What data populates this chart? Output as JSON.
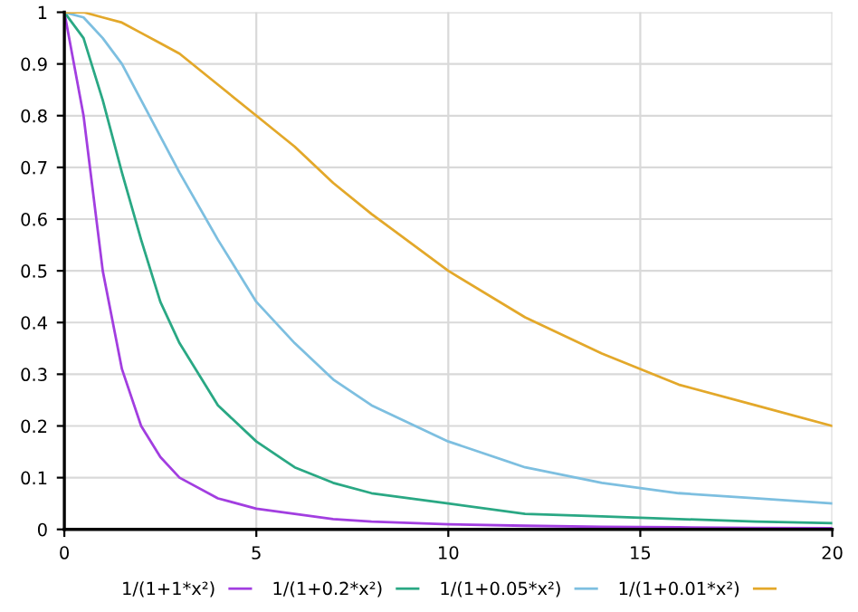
{
  "chart_data": {
    "type": "line",
    "x": [
      0,
      0.5,
      1,
      1.5,
      2,
      2.5,
      3,
      4,
      5,
      6,
      7,
      8,
      10,
      12,
      14,
      16,
      18,
      20
    ],
    "series": [
      {
        "name": "1/(1+1*x²)",
        "color": "#a23ee0",
        "values": [
          1,
          0.8,
          0.5,
          0.31,
          0.2,
          0.14,
          0.1,
          0.06,
          0.04,
          0.03,
          0.02,
          0.015,
          0.01,
          0.007,
          0.005,
          0.004,
          0.003,
          0.0025
        ]
      },
      {
        "name": "1/(1+0.2*x²)",
        "color": "#2aa884",
        "values": [
          1,
          0.95,
          0.83,
          0.69,
          0.56,
          0.44,
          0.36,
          0.24,
          0.17,
          0.12,
          0.09,
          0.07,
          0.05,
          0.03,
          0.025,
          0.02,
          0.015,
          0.012
        ]
      },
      {
        "name": "1/(1+0.05*x²)",
        "color": "#7dbfe0",
        "values": [
          1,
          0.99,
          0.95,
          0.9,
          0.83,
          0.76,
          0.69,
          0.56,
          0.44,
          0.36,
          0.29,
          0.24,
          0.17,
          0.12,
          0.09,
          0.07,
          0.06,
          0.05
        ]
      },
      {
        "name": "1/(1+0.01*x²)",
        "color": "#e3a82a",
        "values": [
          1,
          1,
          0.99,
          0.98,
          0.96,
          0.94,
          0.92,
          0.86,
          0.8,
          0.74,
          0.67,
          0.61,
          0.5,
          0.41,
          0.34,
          0.28,
          0.24,
          0.2
        ]
      }
    ],
    "xlim": [
      0,
      20
    ],
    "xticks": [
      0,
      5,
      10,
      15,
      20
    ],
    "ylim": [
      0,
      1
    ],
    "yticks": [
      0,
      0.1,
      0.2,
      0.3,
      0.4,
      0.5,
      0.6,
      0.7,
      0.8,
      0.9,
      1
    ],
    "grid": true,
    "legend": "bottom",
    "marker": "none",
    "line_style": "solid"
  }
}
